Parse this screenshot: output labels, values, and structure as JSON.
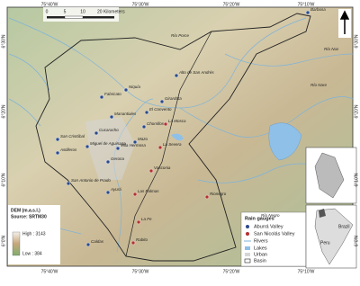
{
  "frame": {
    "top": [
      "75°40'W",
      "75°30'W",
      "75°20'W",
      "75°10'W"
    ],
    "bottom": [
      "75°40'W",
      "75°30'W",
      "75°20'W",
      "75°10'W"
    ],
    "left": [
      "6°30'N",
      "6°20'N",
      "6°10'N",
      "6°0'N"
    ],
    "right": [
      "6°30'N",
      "6°20'N",
      "6°10'N",
      "6°0'N"
    ]
  },
  "scale": [
    "0",
    "5",
    "10",
    "20 Kilometers"
  ],
  "stations_aburra": [
    "Barbosa",
    "Alto de San Andrés",
    "Niquía",
    "Fabricato",
    "Girardota",
    "El Convento",
    "Manantiales",
    "Chorrillos",
    "San Cristóbal",
    "Cucaracho",
    "Miguel de Aguinaga",
    "Mazo",
    "Villa Hermosa",
    "Astilleros",
    "Gerona",
    "San Antonio de Prado",
    "Ayurá",
    "Caldas"
  ],
  "stations_san_nicolas": [
    "La Mosca",
    "La Severa",
    "Vasconia",
    "Las Palmas",
    "Rionegro",
    "La Fe",
    "Rabito"
  ],
  "rivers": [
    "Río Porce",
    "Río Nare",
    "Río Negro",
    "Río Nus"
  ],
  "legend": {
    "title": "Rain gauges",
    "items": [
      "Aburrá Valley",
      "San Nicolás Valley",
      "Rivers",
      "Lakes",
      "Urban",
      "Basin"
    ]
  },
  "dem": {
    "title": "DEM (m.a.s.l.)",
    "source": "Source: SRTM30",
    "high": "High : 3143",
    "low": "Low : 384"
  },
  "inset": [
    "Brazil",
    "Peru"
  ]
}
